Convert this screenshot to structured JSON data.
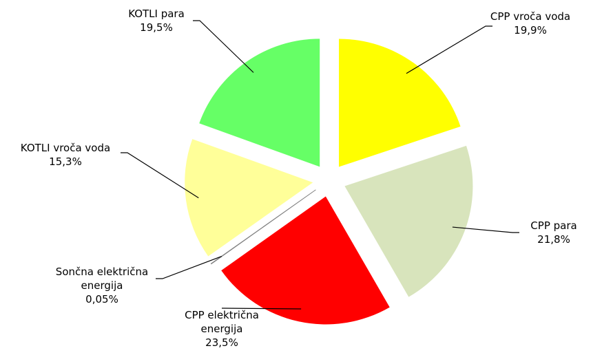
{
  "chart_data": {
    "type": "pie",
    "categories": [
      "CPP vroča voda",
      "CPP para",
      "CPP  električna energija",
      "Sončna električna energija",
      "KOTLI vroča voda",
      "KOTLI para"
    ],
    "values": [
      19.9,
      21.8,
      23.5,
      0.05,
      15.3,
      19.5
    ],
    "value_labels": [
      "19,9%",
      "21,8%",
      "23,5%",
      "0,05%",
      "15,3%",
      "19,5%"
    ],
    "colors": [
      "#ffff00",
      "#d8e4bc",
      "#ff0000",
      "#808080",
      "#ffff99",
      "#66ff66"
    ]
  }
}
